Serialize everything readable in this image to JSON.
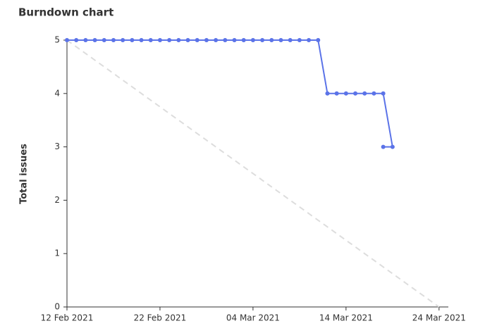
{
  "chart_data": {
    "type": "line",
    "title": "Burndown chart",
    "y_label": "Total issues",
    "x": [
      "2021-02-12",
      "2021-02-13",
      "2021-02-14",
      "2021-02-15",
      "2021-02-16",
      "2021-02-17",
      "2021-02-18",
      "2021-02-19",
      "2021-02-20",
      "2021-02-21",
      "2021-02-22",
      "2021-02-23",
      "2021-02-24",
      "2021-02-25",
      "2021-02-26",
      "2021-02-27",
      "2021-02-28",
      "2021-03-01",
      "2021-03-02",
      "2021-03-03",
      "2021-03-04",
      "2021-03-05",
      "2021-03-06",
      "2021-03-07",
      "2021-03-08",
      "2021-03-09",
      "2021-03-10",
      "2021-03-11",
      "2021-03-12",
      "2021-03-13",
      "2021-03-14",
      "2021-03-15",
      "2021-03-16",
      "2021-03-17",
      "2021-03-18",
      "2021-03-19",
      "2021-03-18"
    ],
    "series": [
      {
        "color": "#5b73e8",
        "values": [
          5,
          5,
          5,
          5,
          5,
          5,
          5,
          5,
          5,
          5,
          5,
          5,
          5,
          5,
          5,
          5,
          5,
          5,
          5,
          5,
          5,
          5,
          5,
          5,
          5,
          5,
          5,
          5,
          4,
          4,
          4,
          4,
          4,
          4,
          4,
          3,
          3
        ]
      }
    ],
    "ideal": {
      "x": [
        "2021-02-12",
        "2021-03-24"
      ],
      "values": [
        5,
        0
      ],
      "color": "#dddddd"
    },
    "xlim": [
      "2021-02-12",
      "2021-03-25"
    ],
    "xticks": [
      {
        "value": "2021-02-12",
        "label": "12 Feb 2021"
      },
      {
        "value": "2021-02-22",
        "label": "22 Feb 2021"
      },
      {
        "value": "2021-03-04",
        "label": "04 Mar 2021"
      },
      {
        "value": "2021-03-14",
        "label": "14 Mar 2021"
      },
      {
        "value": "2021-03-24",
        "label": "24 Mar 2021"
      }
    ],
    "ylim": [
      0,
      5
    ],
    "yticks": [
      0,
      1,
      2,
      3,
      4,
      5
    ]
  }
}
